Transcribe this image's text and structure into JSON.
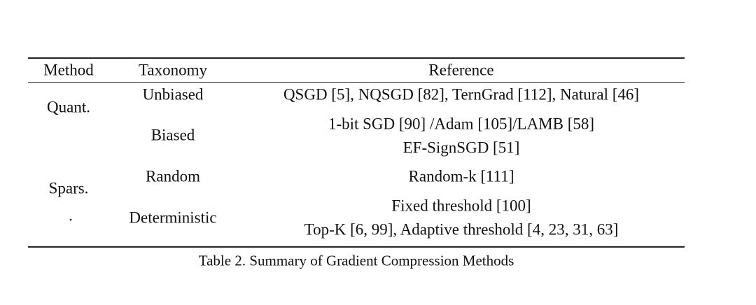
{
  "table": {
    "header": [
      "Method",
      "Taxonomy",
      "Reference"
    ],
    "methods": [
      "Quant.",
      "Spars.",
      "."
    ],
    "rows": [
      {
        "taxonomy": "Unbiased",
        "reference": [
          "QSGD [5], NQSGD [82], TernGrad [112], Natural [46]"
        ]
      },
      {
        "taxonomy": "Biased",
        "reference": [
          "1-bit SGD [90] /Adam [105]/LAMB [58]",
          "EF-SignSGD [51]"
        ]
      },
      {
        "taxonomy": "Random",
        "reference": [
          "Random-k [111]"
        ]
      },
      {
        "taxonomy": "Deterministic",
        "reference": [
          "Fixed threshold [100]",
          "Top-K [6, 99], Adaptive threshold [4, 23, 31, 63]"
        ]
      }
    ],
    "caption": "Table 2.  Summary of Gradient Compression Methods"
  }
}
